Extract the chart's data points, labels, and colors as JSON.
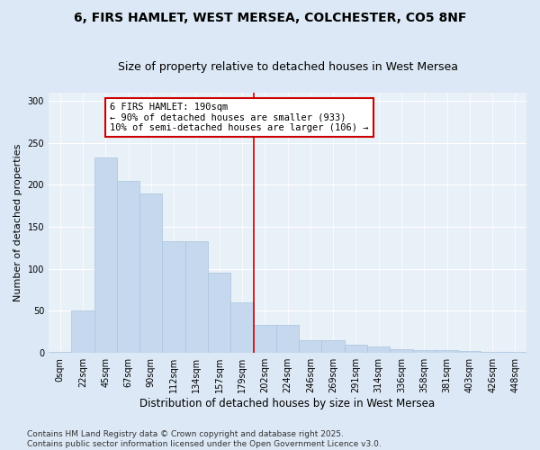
{
  "title": "6, FIRS HAMLET, WEST MERSEA, COLCHESTER, CO5 8NF",
  "subtitle": "Size of property relative to detached houses in West Mersea",
  "xlabel": "Distribution of detached houses by size in West Mersea",
  "ylabel": "Number of detached properties",
  "categories": [
    "0sqm",
    "22sqm",
    "45sqm",
    "67sqm",
    "90sqm",
    "112sqm",
    "134sqm",
    "157sqm",
    "179sqm",
    "202sqm",
    "224sqm",
    "246sqm",
    "269sqm",
    "291sqm",
    "314sqm",
    "336sqm",
    "358sqm",
    "381sqm",
    "403sqm",
    "426sqm",
    "448sqm"
  ],
  "values": [
    1,
    50,
    232,
    205,
    190,
    133,
    133,
    95,
    60,
    33,
    33,
    15,
    15,
    10,
    8,
    5,
    3,
    3,
    2,
    1,
    1
  ],
  "bar_color": "#c5d8ed",
  "bar_edgecolor": "#aac4df",
  "vline_x": 8.5,
  "vline_color": "#cc0000",
  "annotation_text": "6 FIRS HAMLET: 190sqm\n← 90% of detached houses are smaller (933)\n10% of semi-detached houses are larger (106) →",
  "annotation_box_color": "#ffffff",
  "annotation_box_edgecolor": "#cc0000",
  "ylim": [
    0,
    310
  ],
  "yticks": [
    0,
    50,
    100,
    150,
    200,
    250,
    300
  ],
  "footnote": "Contains HM Land Registry data © Crown copyright and database right 2025.\nContains public sector information licensed under the Open Government Licence v3.0.",
  "bg_color": "#dce8f5",
  "plot_bg_color": "#e8f0f8",
  "title_fontsize": 10,
  "subtitle_fontsize": 9,
  "xlabel_fontsize": 8.5,
  "ylabel_fontsize": 8,
  "tick_fontsize": 7,
  "footnote_fontsize": 6.5,
  "annot_fontsize": 7.5
}
